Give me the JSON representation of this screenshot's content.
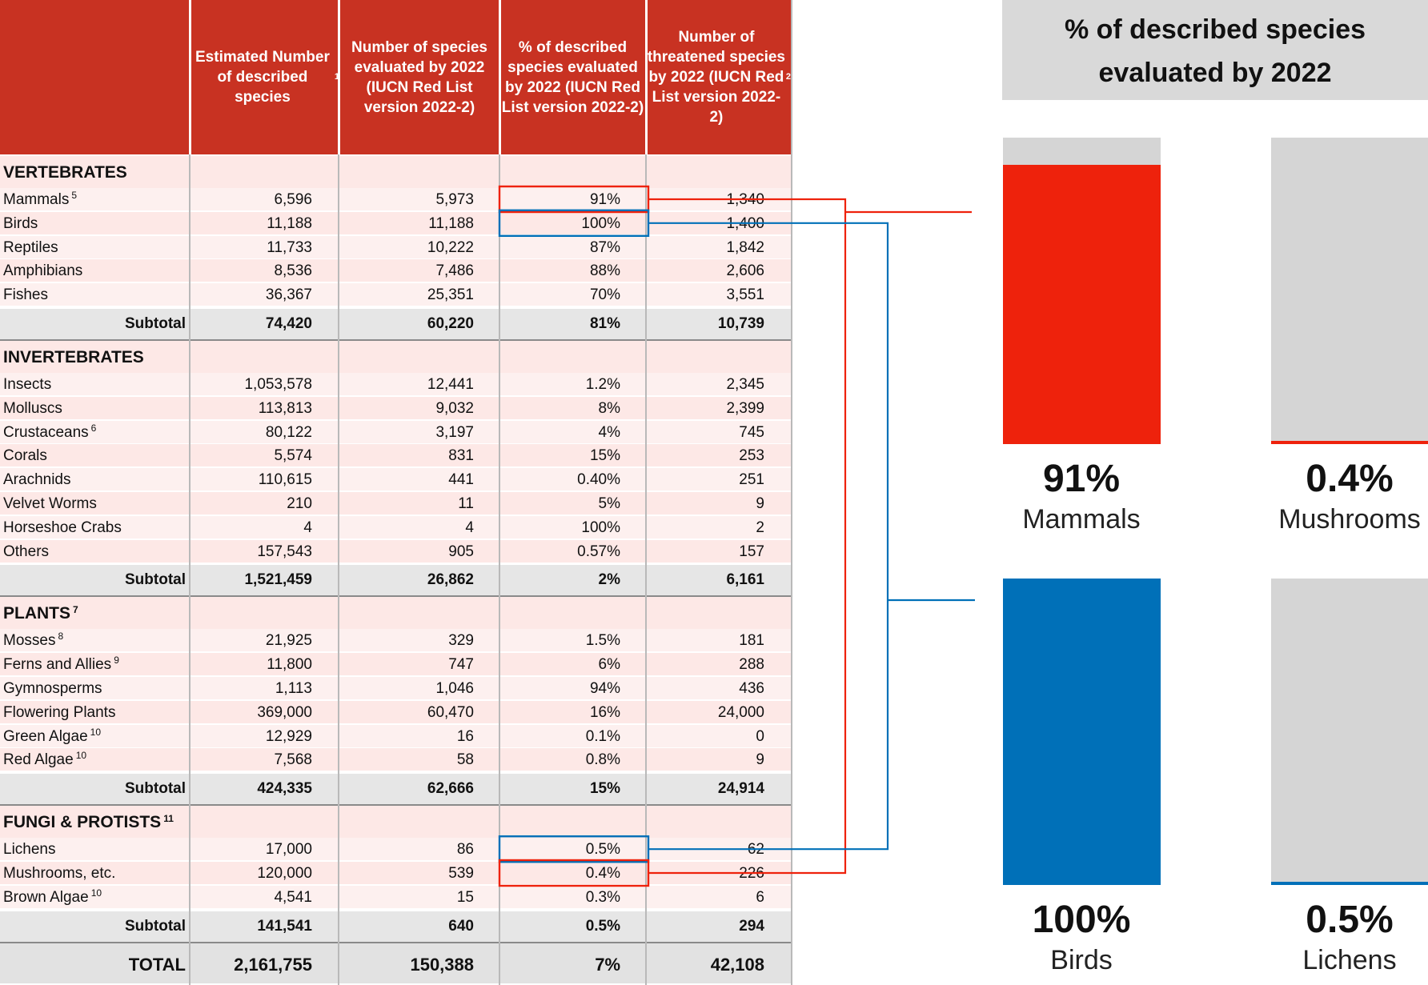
{
  "table": {
    "headers": [
      "",
      "Estimated Number of described species",
      "Number of species evaluated by 2022 (IUCN Red List version 2022-2)",
      "% of described species evaluated by 2022 (IUCN Red List version 2022-2)",
      "Number of threatened species by 2022 (IUCN Red List version 2022-2)"
    ],
    "header_footnotes": {
      "h1": "1",
      "h4": "2"
    },
    "sections": [
      {
        "name": "VERTEBRATES",
        "footnote": "",
        "rows": [
          {
            "label": "Mammals",
            "fn": "5",
            "est": "6,596",
            "eval": "5,973",
            "pct": "91%",
            "thr": "1,340"
          },
          {
            "label": "Birds",
            "fn": "",
            "est": "11,188",
            "eval": "11,188",
            "pct": "100%",
            "thr": "1,400"
          },
          {
            "label": "Reptiles",
            "fn": "",
            "est": "11,733",
            "eval": "10,222",
            "pct": "87%",
            "thr": "1,842"
          },
          {
            "label": "Amphibians",
            "fn": "",
            "est": "8,536",
            "eval": "7,486",
            "pct": "88%",
            "thr": "2,606"
          },
          {
            "label": "Fishes",
            "fn": "",
            "est": "36,367",
            "eval": "25,351",
            "pct": "70%",
            "thr": "3,551"
          }
        ],
        "subtotal": {
          "label": "Subtotal",
          "est": "74,420",
          "eval": "60,220",
          "pct": "81%",
          "thr": "10,739"
        }
      },
      {
        "name": "INVERTEBRATES",
        "footnote": "",
        "rows": [
          {
            "label": "Insects",
            "fn": "",
            "est": "1,053,578",
            "eval": "12,441",
            "pct": "1.2%",
            "thr": "2,345"
          },
          {
            "label": "Molluscs",
            "fn": "",
            "est": "113,813",
            "eval": "9,032",
            "pct": "8%",
            "thr": "2,399"
          },
          {
            "label": "Crustaceans",
            "fn": "6",
            "est": "80,122",
            "eval": "3,197",
            "pct": "4%",
            "thr": "745"
          },
          {
            "label": "Corals",
            "fn": "",
            "est": "5,574",
            "eval": "831",
            "pct": "15%",
            "thr": "253"
          },
          {
            "label": "Arachnids",
            "fn": "",
            "est": "110,615",
            "eval": "441",
            "pct": "0.40%",
            "thr": "251"
          },
          {
            "label": "Velvet Worms",
            "fn": "",
            "est": "210",
            "eval": "11",
            "pct": "5%",
            "thr": "9"
          },
          {
            "label": "Horseshoe Crabs",
            "fn": "",
            "est": "4",
            "eval": "4",
            "pct": "100%",
            "thr": "2"
          },
          {
            "label": "Others",
            "fn": "",
            "est": "157,543",
            "eval": "905",
            "pct": "0.57%",
            "thr": "157"
          }
        ],
        "subtotal": {
          "label": "Subtotal",
          "est": "1,521,459",
          "eval": "26,862",
          "pct": "2%",
          "thr": "6,161"
        }
      },
      {
        "name": "PLANTS",
        "footnote": "7",
        "rows": [
          {
            "label": "Mosses",
            "fn": "8",
            "est": "21,925",
            "eval": "329",
            "pct": "1.5%",
            "thr": "181"
          },
          {
            "label": "Ferns and Allies",
            "fn": "9",
            "est": "11,800",
            "eval": "747",
            "pct": "6%",
            "thr": "288"
          },
          {
            "label": "Gymnosperms",
            "fn": "",
            "est": "1,113",
            "eval": "1,046",
            "pct": "94%",
            "thr": "436"
          },
          {
            "label": "Flowering Plants",
            "fn": "",
            "est": "369,000",
            "eval": "60,470",
            "pct": "16%",
            "thr": "24,000"
          },
          {
            "label": "Green Algae",
            "fn": "10",
            "est": "12,929",
            "eval": "16",
            "pct": "0.1%",
            "thr": "0"
          },
          {
            "label": "Red Algae",
            "fn": "10",
            "est": "7,568",
            "eval": "58",
            "pct": "0.8%",
            "thr": "9"
          }
        ],
        "subtotal": {
          "label": "Subtotal",
          "est": "424,335",
          "eval": "62,666",
          "pct": "15%",
          "thr": "24,914"
        }
      },
      {
        "name": "FUNGI & PROTISTS",
        "footnote": "11",
        "rows": [
          {
            "label": "Lichens",
            "fn": "",
            "est": "17,000",
            "eval": "86",
            "pct": "0.5%",
            "thr": "62"
          },
          {
            "label": "Mushrooms, etc.",
            "fn": "",
            "est": "120,000",
            "eval": "539",
            "pct": "0.4%",
            "thr": "226"
          },
          {
            "label": "Brown Algae",
            "fn": "10",
            "est": "4,541",
            "eval": "15",
            "pct": "0.3%",
            "thr": "6"
          }
        ],
        "subtotal": {
          "label": "Subtotal",
          "est": "141,541",
          "eval": "640",
          "pct": "0.5%",
          "thr": "294"
        }
      }
    ],
    "total": {
      "label": "TOTAL",
      "est": "2,161,755",
      "eval": "150,388",
      "pct": "7%",
      "thr": "42,108"
    }
  },
  "colors": {
    "header_red": "#c83222",
    "bar_red": "#ee220c",
    "bar_blue": "#0070b8",
    "bar_bg": "#d5d5d5",
    "row_pink": "#fde8e6",
    "subtotal_gray": "#e6e6e6"
  },
  "chart_data": {
    "type": "bar",
    "title": "% of described species evaluated by 2022",
    "series": [
      {
        "label": "Mammals",
        "value": 91,
        "display": "91%",
        "color": "#ee220c"
      },
      {
        "label": "Mushrooms",
        "value": 0.4,
        "display": "0.4%",
        "color": "#ee220c"
      },
      {
        "label": "Birds",
        "value": 100,
        "display": "100%",
        "color": "#0070b8"
      },
      {
        "label": "Lichens",
        "value": 0.5,
        "display": "0.5%",
        "color": "#0070b8"
      }
    ],
    "ylim": [
      0,
      100
    ]
  }
}
